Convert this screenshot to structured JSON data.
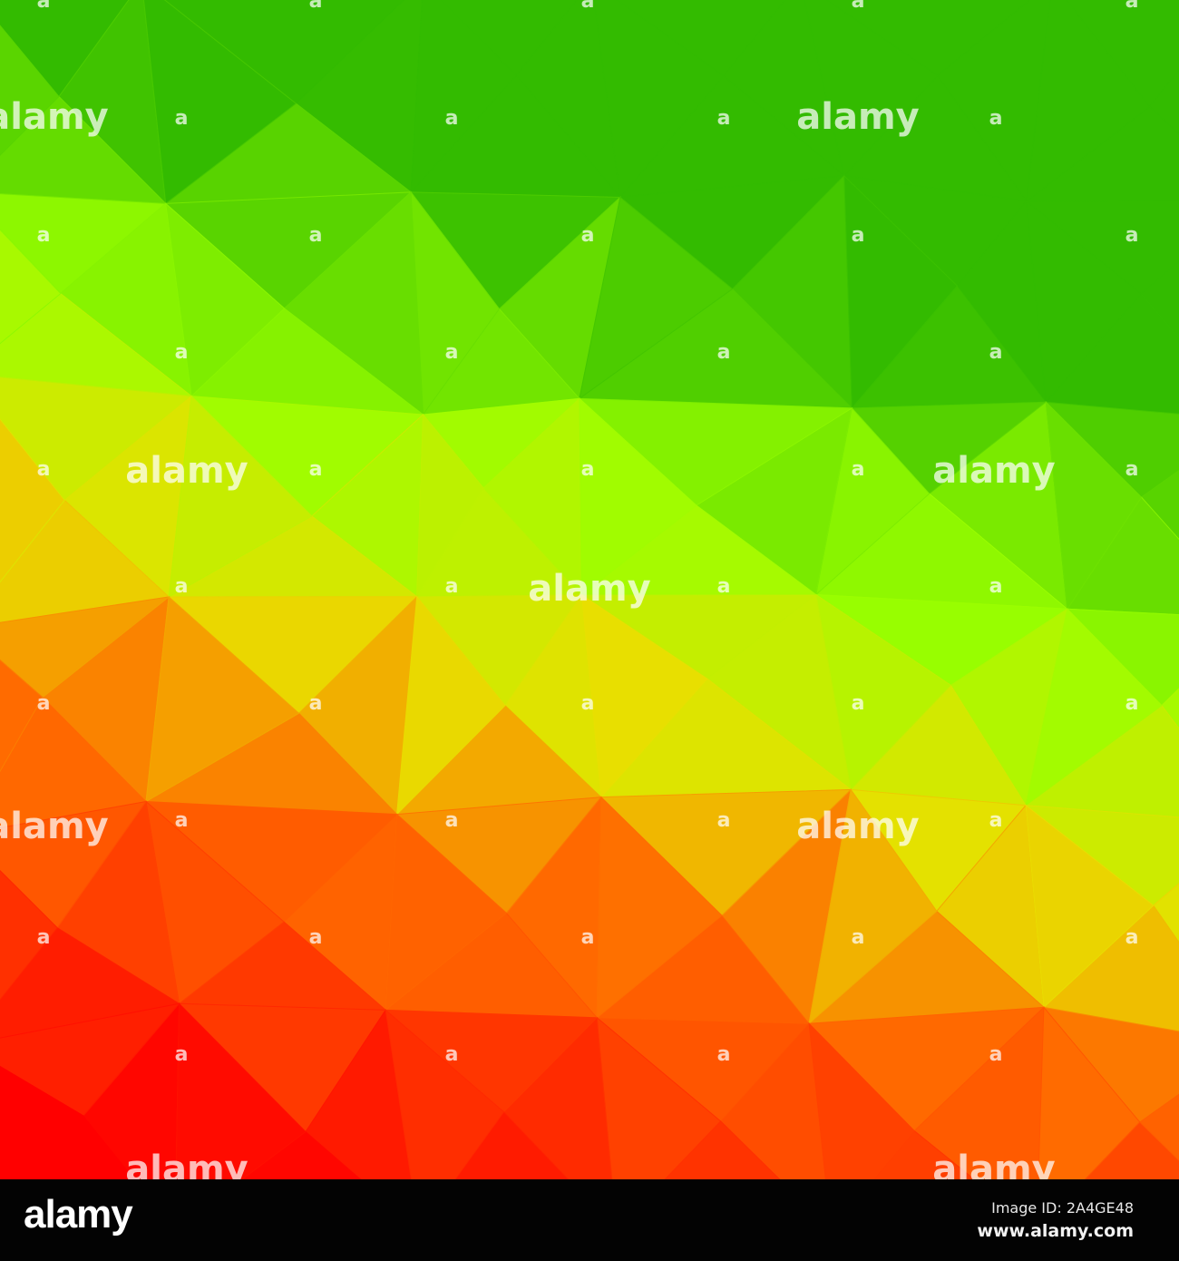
{
  "watermark": {
    "large": "alamy",
    "small": "a"
  },
  "colors": {
    "red": "#ff0000",
    "orange": "#ff6a00",
    "yellow": "#e8e000",
    "lime": "#99ff00",
    "green": "#33bb00"
  },
  "footer": {
    "logo": "alamy",
    "image_id": "Image ID: 2A4GE48",
    "website": "www.alamy.com"
  }
}
